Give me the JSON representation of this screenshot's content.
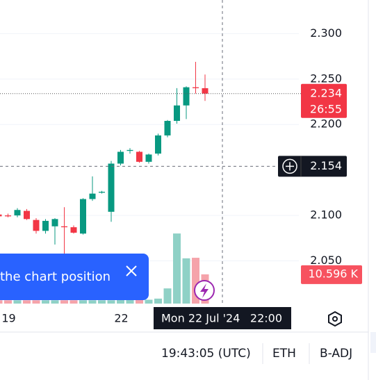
{
  "chart_data": {
    "type": "candlestick",
    "categories": [
      null,
      "19",
      null,
      null,
      null,
      null,
      null,
      null,
      null,
      null,
      null,
      null,
      null,
      "22",
      null,
      null,
      null,
      null,
      null,
      null,
      null,
      null,
      null
    ],
    "open": [
      2.101,
      2.1,
      2.1,
      2.105,
      2.095,
      2.083,
      2.088,
      2.088,
      2.087,
      2.08,
      2.118,
      2.125,
      2.104,
      2.157,
      2.171,
      2.17,
      2.159,
      2.168,
      2.188,
      2.204,
      2.221,
      2.241,
      2.24
    ],
    "high": [
      2.102,
      2.102,
      2.108,
      2.107,
      2.097,
      2.096,
      2.097,
      2.109,
      2.089,
      2.119,
      2.143,
      2.127,
      2.16,
      2.172,
      2.174,
      2.171,
      2.168,
      2.19,
      2.205,
      2.24,
      2.242,
      2.269,
      2.255
    ],
    "low": [
      2.098,
      2.098,
      2.098,
      2.095,
      2.08,
      2.08,
      2.068,
      2.058,
      2.08,
      2.079,
      2.116,
      2.124,
      2.093,
      2.155,
      2.168,
      2.158,
      2.157,
      2.166,
      2.186,
      2.201,
      2.206,
      2.234,
      2.226
    ],
    "close": [
      2.099,
      2.099,
      2.106,
      2.096,
      2.083,
      2.094,
      2.096,
      2.087,
      2.081,
      2.118,
      2.124,
      2.126,
      2.157,
      2.17,
      2.172,
      2.159,
      2.167,
      2.188,
      2.204,
      2.221,
      2.241,
      2.24,
      2.234
    ],
    "up_color": "#089981",
    "down_color": "#f23645",
    "volume": {
      "values": [
        1.2,
        1.2,
        1.2,
        1.2,
        1.2,
        1.2,
        1.2,
        1.2,
        1.2,
        1.2,
        1.2,
        1.2,
        1.2,
        1.4,
        1.4,
        1.4,
        1.4,
        1.8,
        5.5,
        25.4,
        16.4,
        16.6,
        10.596
      ],
      "up_color": "#8fd1c6",
      "down_color": "#f5a3aa"
    },
    "volume_ylim": [
      0,
      110
    ],
    "last_volume_label": "10.596 K",
    "ylim": [
      2.003,
      2.337
    ],
    "yticks": [
      {
        "value": 2.05,
        "label": "2.050"
      },
      {
        "value": 2.1,
        "label": "2.100"
      },
      {
        "value": 2.2,
        "label": "2.200"
      },
      {
        "value": 2.25,
        "label": "2.250"
      },
      {
        "value": 2.3,
        "label": "2.300"
      }
    ],
    "grid": true,
    "last_price": 2.234,
    "countdown": "26:55",
    "crosshair": {
      "price": 2.154,
      "date": "Mon 22 Jul '24",
      "time": "22:00"
    }
  },
  "ui": {
    "toast": "the chart position",
    "clock": "19:43:05 (UTC)",
    "currency": "ETH",
    "adjustment": "B-ADJ"
  }
}
